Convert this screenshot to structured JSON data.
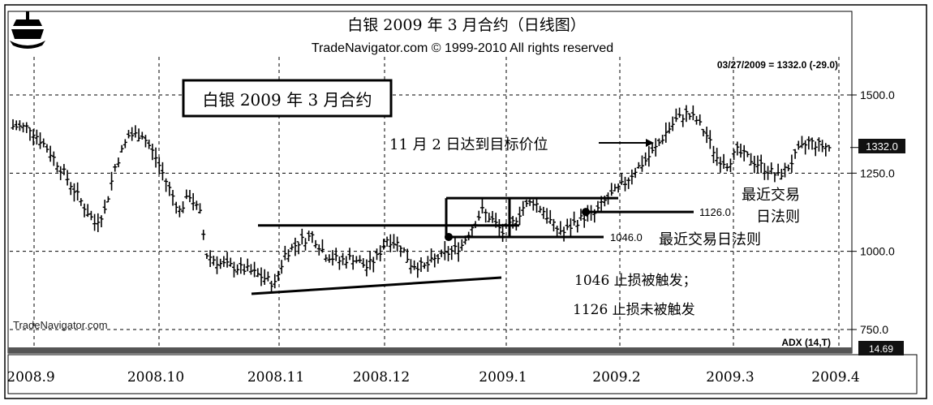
{
  "chart_data": {
    "type": "bar",
    "title": "白银 2009 年 3 月合约（日线图）",
    "subtitle": "TradeNavigator.com © 1999-2010 All rights reserved",
    "readout": "03/27/2009 = 1332.0 (-29.0)",
    "inset_label": "白银 2009 年 3 月合约",
    "watermark": "TradeNavigator.com",
    "last_price_label": "1332.0",
    "indicator_label": "ADX (14,T)",
    "indicator_value": "14.69",
    "x_tick_labels": [
      "2008.9",
      "2008.10",
      "2008.11",
      "2008.12",
      "2009.1",
      "2009.2",
      "2009.3",
      "2009.4"
    ],
    "y_tick_labels": [
      "1500.0",
      "1250.0",
      "1000.0",
      "750.0"
    ],
    "y_ticks": [
      1500,
      1250,
      1000,
      750
    ],
    "ylim": [
      715,
      1620
    ],
    "last_price": 1332,
    "levels": {
      "upper_channel": 1170,
      "stop_1126": 1126,
      "stop_1046": 1046,
      "resistance": 1088
    },
    "annotations": {
      "target": "11 月 2 日达到目标价位",
      "stop_1126": "1126.0",
      "stop_1046": "1046.0",
      "recent_rule_1": "最近交易日法则",
      "recent_rule_2a": "最近交易",
      "recent_rule_2b": "日法则",
      "note_line1": "1046 止损被触发；",
      "note_line2": "1126 止损未被触发"
    },
    "anchors": [
      [
        0,
        1400
      ],
      [
        5,
        1395
      ],
      [
        10,
        1330
      ],
      [
        15,
        1250
      ],
      [
        20,
        1160
      ],
      [
        24,
        1090
      ],
      [
        27,
        1130
      ],
      [
        30,
        1270
      ],
      [
        34,
        1370
      ],
      [
        38,
        1375
      ],
      [
        42,
        1300
      ],
      [
        46,
        1200
      ],
      [
        49,
        1130
      ],
      [
        52,
        1180
      ],
      [
        55,
        1120
      ],
      [
        57,
        990
      ],
      [
        61,
        960
      ],
      [
        65,
        950
      ],
      [
        69,
        940
      ],
      [
        73,
        920
      ],
      [
        77,
        895
      ],
      [
        80,
        990
      ],
      [
        84,
        1030
      ],
      [
        88,
        1050
      ],
      [
        92,
        990
      ],
      [
        96,
        970
      ],
      [
        100,
        980
      ],
      [
        104,
        950
      ],
      [
        107,
        980
      ],
      [
        110,
        1040
      ],
      [
        114,
        1020
      ],
      [
        117,
        960
      ],
      [
        121,
        950
      ],
      [
        125,
        980
      ],
      [
        129,
        1000
      ],
      [
        132,
        1020
      ],
      [
        135,
        1080
      ],
      [
        138,
        1130
      ],
      [
        141,
        1100
      ],
      [
        144,
        1060
      ],
      [
        147,
        1090
      ],
      [
        150,
        1140
      ],
      [
        153,
        1160
      ],
      [
        156,
        1130
      ],
      [
        159,
        1080
      ],
      [
        162,
        1060
      ],
      [
        165,
        1090
      ],
      [
        168,
        1110
      ],
      [
        171,
        1120
      ],
      [
        174,
        1160
      ],
      [
        177,
        1190
      ],
      [
        180,
        1220
      ],
      [
        183,
        1260
      ],
      [
        186,
        1290
      ],
      [
        189,
        1330
      ],
      [
        192,
        1380
      ],
      [
        195,
        1420
      ],
      [
        198,
        1440
      ],
      [
        201,
        1420
      ],
      [
        204,
        1370
      ],
      [
        207,
        1300
      ],
      [
        210,
        1280
      ],
      [
        213,
        1320
      ],
      [
        216,
        1300
      ],
      [
        219,
        1280
      ],
      [
        222,
        1260
      ],
      [
        225,
        1240
      ],
      [
        228,
        1270
      ],
      [
        231,
        1320
      ],
      [
        234,
        1350
      ],
      [
        237,
        1340
      ],
      [
        240,
        1332
      ]
    ]
  }
}
